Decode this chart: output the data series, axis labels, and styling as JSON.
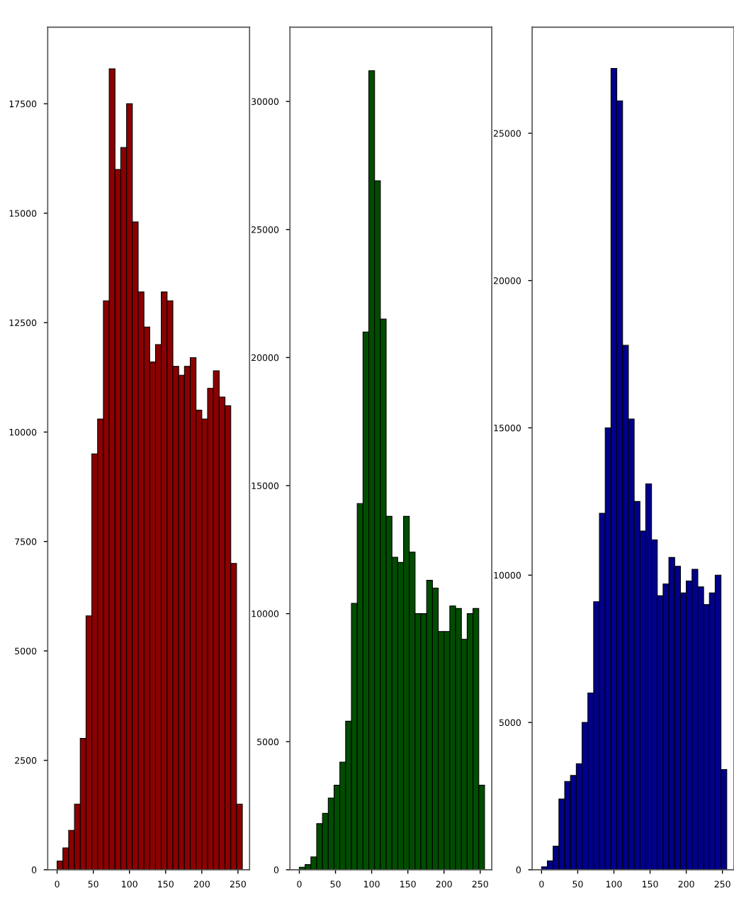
{
  "chart_data": [
    {
      "type": "histogram",
      "color": "#8b0000",
      "bins": [
        0,
        8,
        16,
        24,
        32,
        40,
        48,
        56,
        64,
        72,
        80,
        88,
        96,
        104,
        112,
        120,
        128,
        136,
        144,
        152,
        160,
        168,
        176,
        184,
        192,
        200,
        208,
        216,
        224,
        232,
        240,
        248,
        256
      ],
      "values": [
        200,
        500,
        900,
        1500,
        3000,
        5800,
        9500,
        10300,
        13000,
        18300,
        16000,
        16500,
        17500,
        14800,
        13200,
        12400,
        11600,
        12000,
        13200,
        13000,
        11500,
        11300,
        11500,
        11700,
        10500,
        10300,
        11000,
        11400,
        10800,
        10600,
        7000,
        1500
      ],
      "xlim": [
        -13,
        266
      ],
      "ylim": [
        0,
        19250
      ],
      "xticks": [
        0,
        50,
        100,
        150,
        200,
        250
      ],
      "yticks": [
        0,
        2500,
        5000,
        7500,
        10000,
        12500,
        15000,
        17500
      ],
      "grid": false
    },
    {
      "type": "histogram",
      "color": "#004d00",
      "bins": [
        0,
        8,
        16,
        24,
        32,
        40,
        48,
        56,
        64,
        72,
        80,
        88,
        96,
        104,
        112,
        120,
        128,
        136,
        144,
        152,
        160,
        168,
        176,
        184,
        192,
        200,
        208,
        216,
        224,
        232,
        240,
        248,
        256
      ],
      "values": [
        100,
        200,
        500,
        1800,
        2200,
        2800,
        3300,
        4200,
        5800,
        10400,
        14300,
        21000,
        31200,
        26900,
        21500,
        13800,
        12200,
        12000,
        13800,
        12400,
        10000,
        10000,
        11300,
        11000,
        9300,
        9300,
        10300,
        10200,
        9000,
        10000,
        10200,
        3300
      ],
      "xlim": [
        -13,
        266
      ],
      "ylim": [
        0,
        32900
      ],
      "xticks": [
        0,
        50,
        100,
        150,
        200,
        250
      ],
      "yticks": [
        0,
        5000,
        10000,
        15000,
        20000,
        25000,
        30000
      ],
      "grid": false
    },
    {
      "type": "histogram",
      "color": "#00008b",
      "bins": [
        0,
        8,
        16,
        24,
        32,
        40,
        48,
        56,
        64,
        72,
        80,
        88,
        96,
        104,
        112,
        120,
        128,
        136,
        144,
        152,
        160,
        168,
        176,
        184,
        192,
        200,
        208,
        216,
        224,
        232,
        240,
        248,
        256
      ],
      "values": [
        100,
        300,
        800,
        2400,
        3000,
        3200,
        3600,
        5000,
        6000,
        9100,
        12100,
        15000,
        27200,
        26100,
        17800,
        15300,
        12500,
        11500,
        13100,
        11200,
        9300,
        9700,
        10600,
        10300,
        9400,
        9800,
        10200,
        9600,
        9000,
        9400,
        10000,
        3400
      ],
      "xlim": [
        -13,
        266
      ],
      "ylim": [
        0,
        28600
      ],
      "xticks": [
        0,
        50,
        100,
        150,
        200,
        250
      ],
      "yticks": [
        0,
        5000,
        10000,
        15000,
        20000,
        25000
      ],
      "grid": false
    }
  ]
}
